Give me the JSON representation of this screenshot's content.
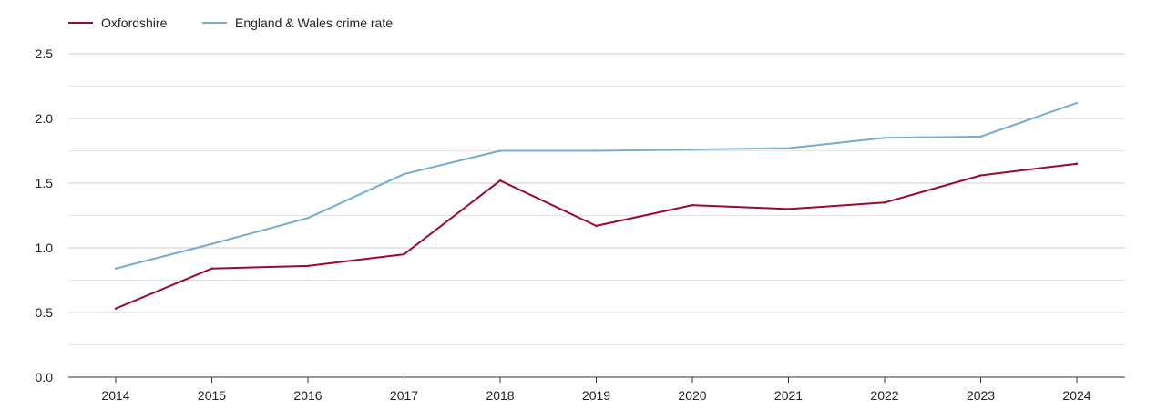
{
  "chart_data": {
    "type": "line",
    "title": "",
    "xlabel": "",
    "ylabel": "",
    "categories": [
      "2014",
      "2015",
      "2016",
      "2017",
      "2018",
      "2019",
      "2020",
      "2021",
      "2022",
      "2023",
      "2024"
    ],
    "ylim": [
      0,
      2.5
    ],
    "yticks": [
      "0.0",
      "0.5",
      "1.0",
      "1.5",
      "2.0",
      "2.5"
    ],
    "grid": true,
    "legend_position": "top-left",
    "series": [
      {
        "name": "Oxfordshire",
        "color": "#9b0a2e",
        "values": [
          0.53,
          0.84,
          0.86,
          0.95,
          1.52,
          1.17,
          1.33,
          1.3,
          1.35,
          1.56,
          1.65
        ]
      },
      {
        "name": "England & Wales crime rate",
        "color": "#74add1",
        "values": [
          0.84,
          1.03,
          1.23,
          1.57,
          1.75,
          1.75,
          1.76,
          1.77,
          1.85,
          1.86,
          2.12
        ]
      }
    ]
  }
}
